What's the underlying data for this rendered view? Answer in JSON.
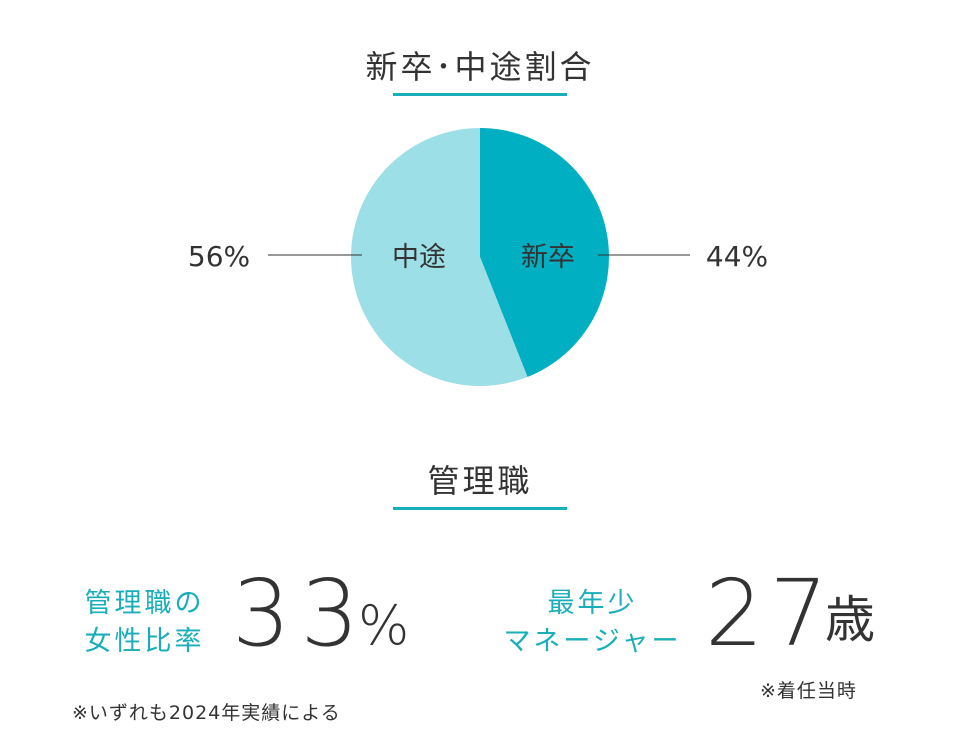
{
  "chart_data": {
    "type": "pie",
    "title": "新卒･中途割合",
    "slices": [
      {
        "label": "新卒",
        "value": 44,
        "display": "44%",
        "color": "#00afc1"
      },
      {
        "label": "中途",
        "value": 56,
        "display": "56%",
        "color": "#9ddfe6"
      }
    ]
  },
  "management": {
    "title": "管理職",
    "female_ratio": {
      "label_line1": "管理職の",
      "label_line2": "女性比率",
      "value": "33",
      "unit": "%"
    },
    "youngest_manager": {
      "label_line1": "最年少",
      "label_line2": "マネージャー",
      "value": "27",
      "unit": "歳",
      "note": "※着任当時"
    },
    "footnote": "※いずれも2024年実績による"
  },
  "colors": {
    "accent": "#1aaeba",
    "text": "#333333"
  }
}
